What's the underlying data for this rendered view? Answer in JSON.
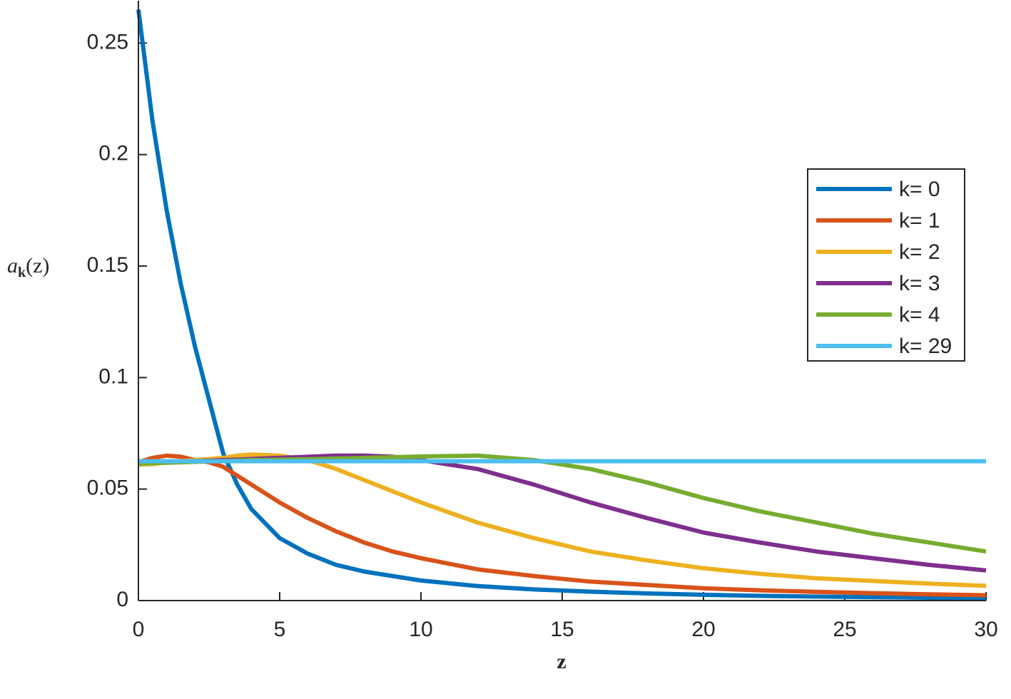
{
  "chart_data": {
    "type": "line",
    "xlabel": "z",
    "ylabel": "a",
    "ylabel_subscript": "k",
    "ylabel_suffix": "(z)",
    "x": [
      0,
      0.5,
      1,
      1.5,
      2,
      2.5,
      3,
      3.5,
      4,
      5,
      6,
      7,
      8,
      9,
      10,
      12,
      14,
      16,
      18,
      20,
      22,
      24,
      26,
      28,
      30
    ],
    "series": [
      {
        "name": "k= 0",
        "color": "#0072bd",
        "values": [
          0.265,
          0.215,
          0.175,
          0.142,
          0.114,
          0.09,
          0.066,
          0.052,
          0.041,
          0.028,
          0.021,
          0.016,
          0.013,
          0.011,
          0.009,
          0.0065,
          0.005,
          0.004,
          0.0032,
          0.0026,
          0.0021,
          0.0018,
          0.0015,
          0.0013,
          0.0011
        ]
      },
      {
        "name": "k= 1",
        "color": "#d95319",
        "values": [
          0.062,
          0.064,
          0.065,
          0.0645,
          0.063,
          0.062,
          0.06,
          0.056,
          0.052,
          0.044,
          0.037,
          0.031,
          0.026,
          0.022,
          0.019,
          0.014,
          0.011,
          0.0085,
          0.007,
          0.0055,
          0.0046,
          0.0039,
          0.0033,
          0.0028,
          0.0024
        ]
      },
      {
        "name": "k= 2",
        "color": "#edb120",
        "values": [
          0.061,
          0.0612,
          0.062,
          0.0625,
          0.063,
          0.0635,
          0.064,
          0.065,
          0.0655,
          0.065,
          0.063,
          0.059,
          0.054,
          0.049,
          0.044,
          0.035,
          0.028,
          0.022,
          0.018,
          0.0145,
          0.012,
          0.01,
          0.0088,
          0.0076,
          0.0066
        ]
      },
      {
        "name": "k= 3",
        "color": "#7e2f8e",
        "values": [
          0.0615,
          0.0616,
          0.062,
          0.0622,
          0.0625,
          0.0627,
          0.063,
          0.0632,
          0.0635,
          0.064,
          0.0645,
          0.065,
          0.065,
          0.0645,
          0.063,
          0.059,
          0.052,
          0.044,
          0.037,
          0.0305,
          0.026,
          0.022,
          0.019,
          0.016,
          0.0135
        ]
      },
      {
        "name": "k= 4",
        "color": "#77ac30",
        "values": [
          0.0615,
          0.0616,
          0.0618,
          0.062,
          0.0622,
          0.0624,
          0.0626,
          0.0628,
          0.063,
          0.0632,
          0.0634,
          0.0637,
          0.064,
          0.0643,
          0.0646,
          0.065,
          0.063,
          0.059,
          0.053,
          0.046,
          0.04,
          0.035,
          0.03,
          0.026,
          0.022
        ]
      },
      {
        "name": "k= 29",
        "color": "#4dbeee",
        "values": [
          0.0625,
          0.0625,
          0.0625,
          0.0625,
          0.0625,
          0.0625,
          0.0625,
          0.0625,
          0.0625,
          0.0625,
          0.0625,
          0.0625,
          0.0625,
          0.0625,
          0.0625,
          0.0625,
          0.0625,
          0.0625,
          0.0625,
          0.0625,
          0.0625,
          0.0625,
          0.0625,
          0.0625,
          0.0625
        ]
      }
    ],
    "xlim": [
      0,
      30
    ],
    "xticks": [
      0,
      5,
      10,
      15,
      20,
      25,
      30
    ],
    "ylim": [
      0,
      0.269
    ],
    "yticks": [
      0,
      0.05,
      0.1,
      0.15,
      0.2,
      0.25
    ],
    "legend": "right"
  }
}
